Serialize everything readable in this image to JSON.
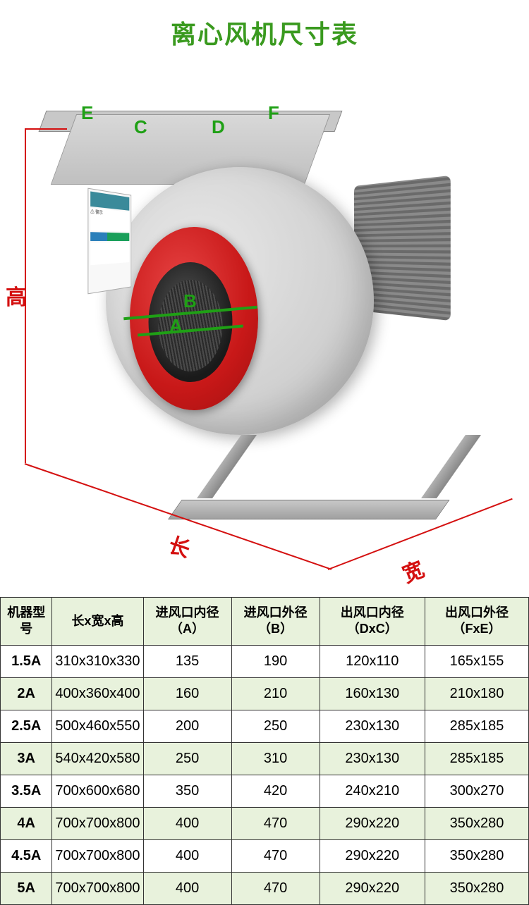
{
  "title": "离心风机尺寸表",
  "diagram_labels": {
    "E": "E",
    "C": "C",
    "D": "D",
    "F": "F",
    "A": "A",
    "B": "B",
    "height": "高",
    "length": "长",
    "width": "宽"
  },
  "colors": {
    "title_color": "#3a9a1f",
    "dim_green": "#1fa015",
    "dim_red": "#d41010",
    "table_header_bg": "#e8f2dc",
    "table_alt_bg": "#e8f2dc",
    "table_border": "#333333",
    "fan_body": "#d0d0d0",
    "inlet_red": "#c81818"
  },
  "table": {
    "columns": [
      "机器型号",
      "长x宽x高",
      "进风口内径（A）",
      "进风口外径（B）",
      "出风口内径（DxC）",
      "出风口外径（FxE）"
    ],
    "rows": [
      {
        "alt": false,
        "cells": [
          "1.5A",
          "310x310x330",
          "135",
          "190",
          "120x110",
          "165x155"
        ]
      },
      {
        "alt": true,
        "cells": [
          "2A",
          "400x360x400",
          "160",
          "210",
          "160x130",
          "210x180"
        ]
      },
      {
        "alt": false,
        "cells": [
          "2.5A",
          "500x460x550",
          "200",
          "250",
          "230x130",
          "285x185"
        ]
      },
      {
        "alt": true,
        "cells": [
          "3A",
          "540x420x580",
          "250",
          "310",
          "230x130",
          "285x185"
        ]
      },
      {
        "alt": false,
        "cells": [
          "3.5A",
          "700x600x680",
          "350",
          "420",
          "240x210",
          "300x270"
        ]
      },
      {
        "alt": true,
        "cells": [
          "4A",
          "700x700x800",
          "400",
          "470",
          "290x220",
          "350x280"
        ]
      },
      {
        "alt": false,
        "cells": [
          "4.5A",
          "700x700x800",
          "400",
          "470",
          "290x220",
          "350x280"
        ]
      },
      {
        "alt": true,
        "cells": [
          "5A",
          "700x700x800",
          "400",
          "470",
          "290x220",
          "350x280"
        ]
      }
    ]
  },
  "font": {
    "title_size": 36,
    "dim_label_size": 26,
    "dim_red_size": 30,
    "table_size": 20,
    "th_size": 18
  }
}
